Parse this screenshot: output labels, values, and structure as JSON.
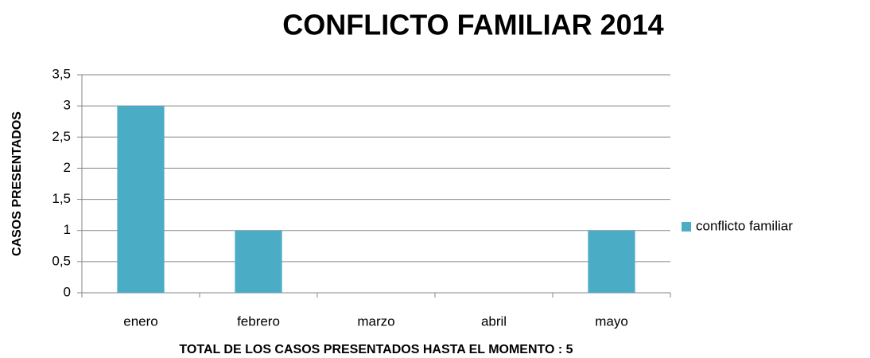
{
  "chart_data": {
    "type": "bar",
    "title": "CONFLICTO FAMILIAR 2014",
    "x_label": "TOTAL DE LOS CASOS PRESENTADOS HASTA EL MOMENTO : 5",
    "y_label": "CASOS PRESENTADOS",
    "categories": [
      "enero",
      "febrero",
      "marzo",
      "abril",
      "mayo"
    ],
    "series": [
      {
        "name": "conflicto familiar",
        "color": "#4bacc6",
        "values": [
          3,
          1,
          0,
          0,
          1
        ]
      }
    ],
    "ylim": [
      0,
      3.5
    ],
    "yticks": [
      0,
      {
        "value": 0.5,
        "label": "0,5"
      },
      1,
      {
        "value": 1.5,
        "label": "1,5"
      },
      2,
      {
        "value": 2.5,
        "label": "2,5"
      },
      3,
      {
        "value": 3.5,
        "label": "3,5"
      }
    ],
    "grid": true,
    "legend": "right"
  }
}
